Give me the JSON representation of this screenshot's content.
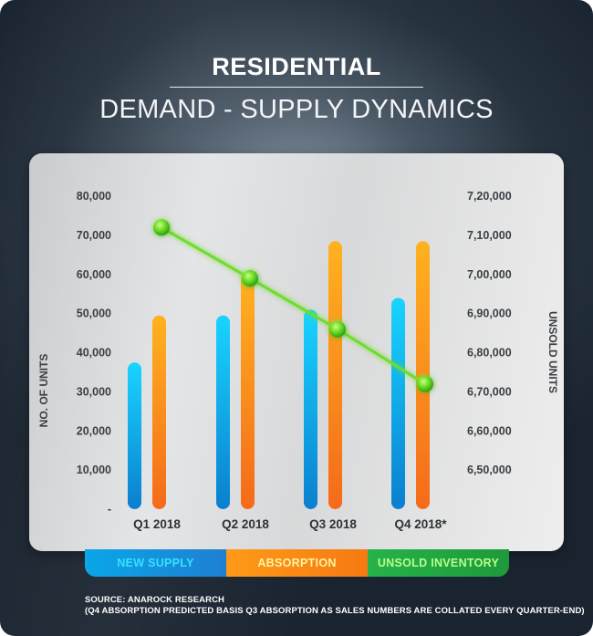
{
  "header": {
    "title": "RESIDENTIAL",
    "subtitle": "DEMAND - SUPPLY DYNAMICS"
  },
  "legend": {
    "items": [
      {
        "label": "NEW SUPPLY",
        "color": "#0aa6e8"
      },
      {
        "label": "ABSORPTION",
        "color": "#ff9a18"
      },
      {
        "label": "UNSOLD INVENTORY",
        "color": "#27b24a"
      }
    ]
  },
  "source": {
    "line1": "SOURCE: ANAROCK RESEARCH",
    "line2": "(Q4 ABSORPTION PREDICTED BASIS Q3 ABSORPTION AS SALES NUMBERS ARE COLLATED EVERY QUARTER-END)"
  },
  "chart_data": {
    "type": "bar",
    "categories": [
      "Q1 2018",
      "Q2 2018",
      "Q3 2018",
      "Q4 2018*"
    ],
    "series": [
      {
        "name": "NEW SUPPLY",
        "type": "bar",
        "axis": "left",
        "values": [
          37500,
          49500,
          51000,
          54000
        ],
        "color_top": "#19d4ff",
        "color_bottom": "#0a7fcf"
      },
      {
        "name": "ABSORPTION",
        "type": "bar",
        "axis": "left",
        "values": [
          49500,
          60500,
          68500,
          68500
        ],
        "color_top": "#ffb21f",
        "color_bottom": "#f56a1a"
      },
      {
        "name": "UNSOLD INVENTORY",
        "type": "line",
        "axis": "right",
        "values": [
          712000,
          699000,
          686000,
          672000
        ],
        "color": "#6fdc2e"
      }
    ],
    "ylabel": "NO. OF UNITS",
    "y2label": "UNSOLD UNITS",
    "ylim": [
      0,
      80000
    ],
    "y2lim": [
      640000,
      720000
    ],
    "yticks": [
      "-",
      "10,000",
      "20,000",
      "30,000",
      "40,000",
      "50,000",
      "60,000",
      "70,000",
      "80,000"
    ],
    "y2ticks": [
      "6,50,000",
      "6,60,000",
      "6,70,000",
      "6,80,000",
      "6,90,000",
      "7,00,000",
      "7,10,000",
      "7,20,000"
    ],
    "y2tick_values": [
      650000,
      660000,
      670000,
      680000,
      690000,
      700000,
      710000,
      720000
    ],
    "grid": false
  }
}
